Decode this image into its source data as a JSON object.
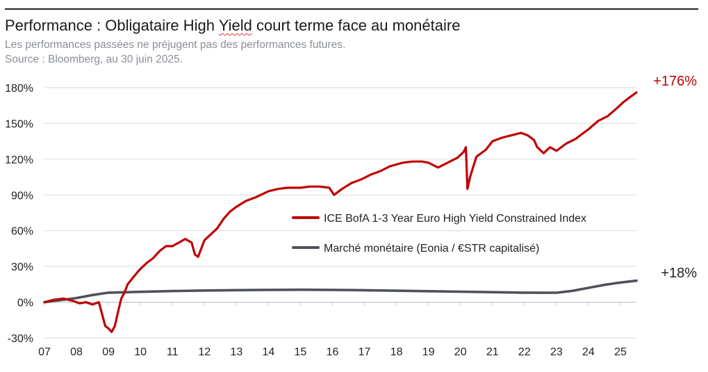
{
  "header": {
    "title_before": "Performance : Obligataire High ",
    "title_yield": "Yield",
    "title_after": " court terme face au monétaire",
    "subtitle": "Les performances passées ne préjugent pas des performances futures.",
    "source": "Source : Bloomberg, au 30 juin 2025."
  },
  "chart_data": {
    "type": "line",
    "title": "Performance : Obligataire High Yield court terme face au monétaire",
    "x_tick_labels": [
      "07",
      "08",
      "09",
      "10",
      "11",
      "12",
      "13",
      "14",
      "15",
      "16",
      "17",
      "18",
      "19",
      "20",
      "21",
      "22",
      "23",
      "24",
      "25"
    ],
    "x_range": [
      2007.0,
      2025.5
    ],
    "y_tick_labels": [
      "-30%",
      "0%",
      "30%",
      "60%",
      "90%",
      "120%",
      "150%",
      "180%"
    ],
    "y_ticks": [
      -30,
      0,
      30,
      60,
      90,
      120,
      150,
      180
    ],
    "ylim": [
      -30,
      180
    ],
    "grid": "horizontal",
    "legend_position": "center-right",
    "series": [
      {
        "name": "ICE BofA 1-3 Year Euro High Yield Constrained Index",
        "color": "#c00000",
        "end_label": "+176%",
        "x": [
          2007.0,
          2007.3,
          2007.6,
          2007.9,
          2008.1,
          2008.3,
          2008.5,
          2008.7,
          2008.8,
          2008.9,
          2009.0,
          2009.1,
          2009.2,
          2009.3,
          2009.4,
          2009.5,
          2009.6,
          2009.75,
          2009.9,
          2010.0,
          2010.2,
          2010.4,
          2010.6,
          2010.8,
          2011.0,
          2011.2,
          2011.4,
          2011.6,
          2011.7,
          2011.8,
          2011.9,
          2012.0,
          2012.2,
          2012.4,
          2012.6,
          2012.8,
          2013.0,
          2013.3,
          2013.6,
          2014.0,
          2014.3,
          2014.6,
          2015.0,
          2015.3,
          2015.6,
          2015.9,
          2016.05,
          2016.3,
          2016.6,
          2016.9,
          2017.2,
          2017.5,
          2017.8,
          2018.2,
          2018.5,
          2018.8,
          2019.0,
          2019.3,
          2019.6,
          2019.9,
          2020.1,
          2020.17,
          2020.22,
          2020.3,
          2020.5,
          2020.8,
          2021.0,
          2021.3,
          2021.6,
          2021.9,
          2022.1,
          2022.3,
          2022.4,
          2022.6,
          2022.8,
          2023.0,
          2023.3,
          2023.6,
          2023.9,
          2024.0,
          2024.3,
          2024.6,
          2024.9,
          2025.1,
          2025.3,
          2025.5
        ],
        "y": [
          0,
          2,
          3,
          1,
          -1,
          0,
          -2,
          0,
          -10,
          -20,
          -22,
          -25,
          -20,
          -8,
          3,
          8,
          15,
          20,
          25,
          28,
          33,
          37,
          43,
          47,
          47,
          50,
          53,
          50,
          40,
          38,
          45,
          52,
          57,
          62,
          70,
          76,
          80,
          85,
          88,
          93,
          95,
          96,
          96,
          97,
          97,
          96,
          90,
          95,
          100,
          103,
          107,
          110,
          114,
          117,
          118,
          118,
          117,
          113,
          117,
          121,
          126,
          130,
          95,
          105,
          122,
          128,
          135,
          138,
          140,
          142,
          140,
          136,
          130,
          125,
          130,
          127,
          133,
          137,
          143,
          145,
          152,
          156,
          163,
          168,
          172,
          176
        ]
      },
      {
        "name": "Marché monétaire (Eonia / €STR capitalisé)",
        "color": "#4d5258",
        "end_label": "+18%",
        "x": [
          2007.0,
          2008.0,
          2008.5,
          2009.0,
          2010.0,
          2011.0,
          2012.0,
          2013.0,
          2014.0,
          2015.0,
          2016.0,
          2017.0,
          2018.0,
          2019.0,
          2020.0,
          2021.0,
          2022.0,
          2023.0,
          2023.5,
          2024.0,
          2024.5,
          2025.0,
          2025.5
        ],
        "y": [
          0,
          3.5,
          6,
          8,
          8.7,
          9.3,
          9.8,
          10.1,
          10.3,
          10.4,
          10.3,
          10.0,
          9.6,
          9.2,
          8.8,
          8.4,
          8.0,
          7.9,
          9.5,
          12,
          14.5,
          16.5,
          18
        ]
      }
    ]
  }
}
